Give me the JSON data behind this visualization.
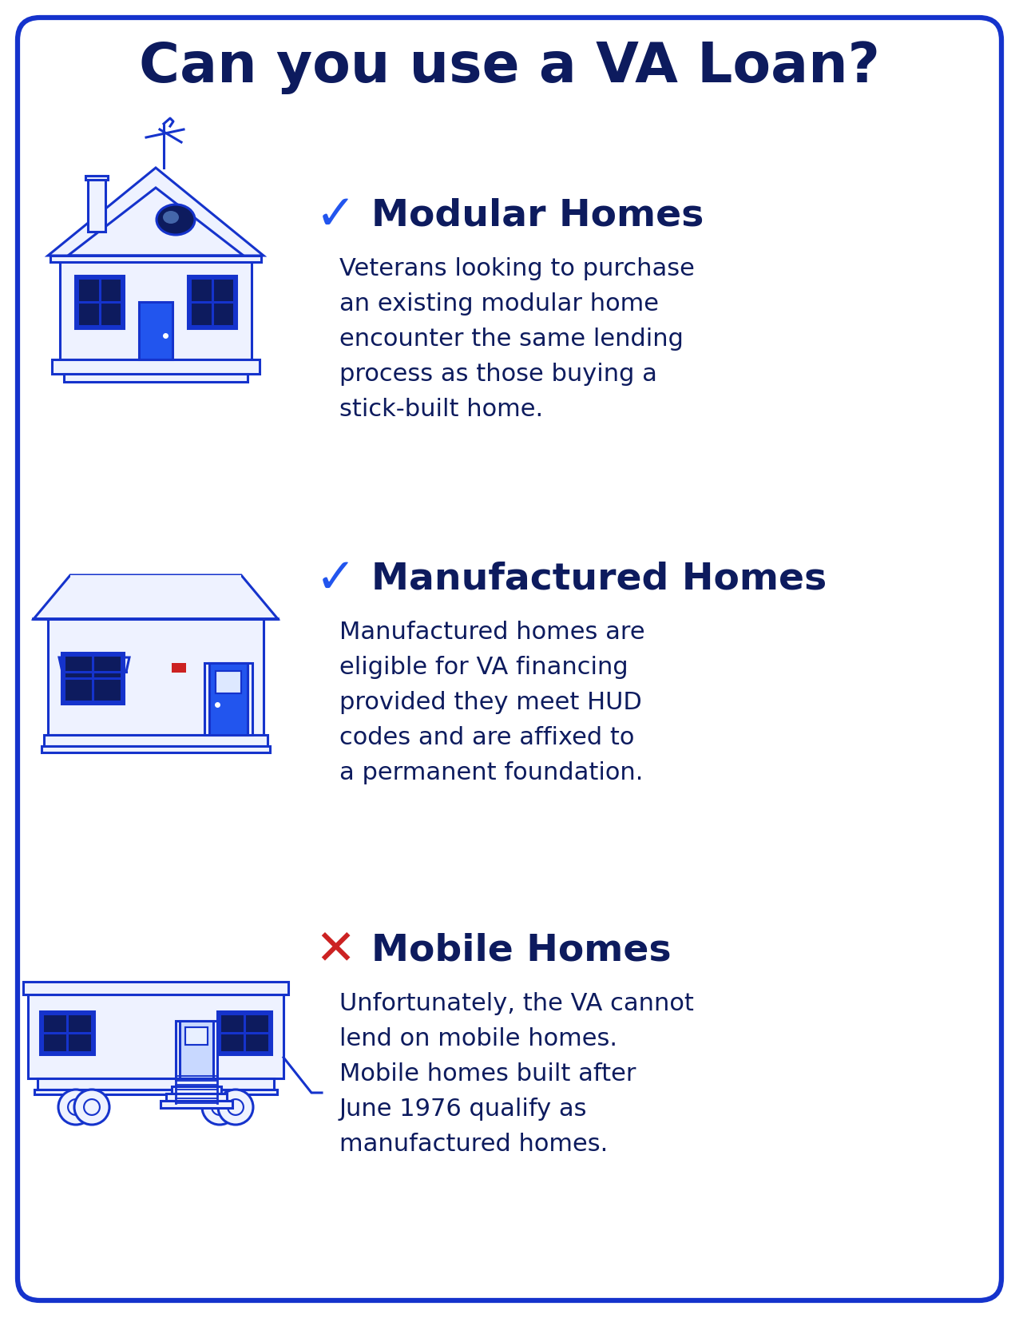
{
  "title": "Can you use a VA Loan?",
  "title_color": "#0d1b5e",
  "background_color": "#ffffff",
  "border_color": "#1533cc",
  "fig_w": 12.76,
  "fig_h": 16.5,
  "dpi": 100,
  "sections": [
    {
      "icon_type": "modular",
      "symbol": "✓",
      "symbol_color": "#2255ee",
      "heading": "Modular Homes",
      "heading_color": "#0d1b5e",
      "body": "Veterans looking to purchase\nan existing modular home\nencounter the same lending\nprocess as those buying a\nstick-built home.",
      "body_color": "#0d1b5e"
    },
    {
      "icon_type": "manufactured",
      "symbol": "✓",
      "symbol_color": "#2255ee",
      "heading": "Manufactured Homes",
      "heading_color": "#0d1b5e",
      "body": "Manufactured homes are\neligible for VA financing\nprovided they meet HUD\ncodes and are affixed to\na permanent foundation.",
      "body_color": "#0d1b5e"
    },
    {
      "icon_type": "mobile",
      "symbol": "✕",
      "symbol_color": "#cc2222",
      "heading": "Mobile Homes",
      "heading_color": "#0d1b5e",
      "body": "Unfortunately, the VA cannot\nlend on mobile homes.\nMobile homes built after\nJune 1976 qualify as\nmanufactured homes.",
      "body_color": "#0d1b5e"
    }
  ],
  "house_line_color": "#1533cc",
  "house_fill_color": "#eef2ff",
  "door_blue_color": "#2255ee",
  "window_dark_color": "#0d1b5e",
  "red_accent": "#cc2222"
}
